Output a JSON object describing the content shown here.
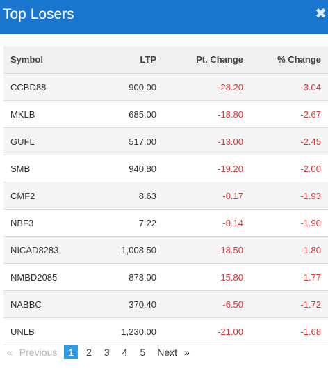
{
  "header": {
    "title": "Top Losers",
    "close_glyph": "✖"
  },
  "table": {
    "columns": [
      "Symbol",
      "LTP",
      "Pt. Change",
      "% Change"
    ],
    "rows": [
      {
        "symbol": "CCBD88",
        "ltp": "900.00",
        "pt_change": "-28.20",
        "pct_change": "-3.04"
      },
      {
        "symbol": "MKLB",
        "ltp": "685.00",
        "pt_change": "-18.80",
        "pct_change": "-2.67"
      },
      {
        "symbol": "GUFL",
        "ltp": "517.00",
        "pt_change": "-13.00",
        "pct_change": "-2.45"
      },
      {
        "symbol": "SMB",
        "ltp": "940.80",
        "pt_change": "-19.20",
        "pct_change": "-2.00"
      },
      {
        "symbol": "CMF2",
        "ltp": "8.63",
        "pt_change": "-0.17",
        "pct_change": "-1.93"
      },
      {
        "symbol": "NBF3",
        "ltp": "7.22",
        "pt_change": "-0.14",
        "pct_change": "-1.90"
      },
      {
        "symbol": "NICAD8283",
        "ltp": "1,008.50",
        "pt_change": "-18.50",
        "pct_change": "-1.80"
      },
      {
        "symbol": "NMBD2085",
        "ltp": "878.00",
        "pt_change": "-15.80",
        "pct_change": "-1.77"
      },
      {
        "symbol": "NABBC",
        "ltp": "370.40",
        "pt_change": "-6.50",
        "pct_change": "-1.72"
      },
      {
        "symbol": "UNLB",
        "ltp": "1,230.00",
        "pt_change": "-21.00",
        "pct_change": "-1.68"
      }
    ]
  },
  "pagination": {
    "prev_arrow": "«",
    "prev_label": "Previous",
    "pages": [
      "1",
      "2",
      "3",
      "4",
      "5"
    ],
    "active_page": "1",
    "next_label": "Next",
    "next_arrow": "»"
  },
  "colors": {
    "header_bg": "#1a75cf",
    "negative": "#e03131",
    "active_page": "#2e9be6"
  }
}
